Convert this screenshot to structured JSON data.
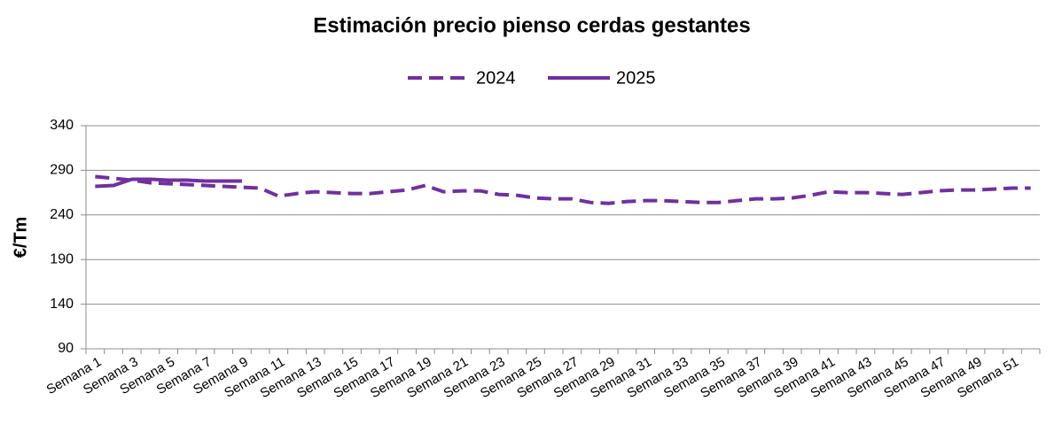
{
  "chart_data": {
    "type": "line",
    "title": "Estimación precio pienso cerdas gestantes",
    "y_label": "€/Tm",
    "categories": [
      "Semana 1",
      null,
      "Semana 3",
      null,
      "Semana 5",
      null,
      "Semana 7",
      null,
      "Semana 9",
      null,
      "Semana 11",
      null,
      "Semana 13",
      null,
      "Semana 15",
      null,
      "Semana 17",
      null,
      "Semana 19",
      null,
      "Semana 21",
      null,
      "Semana 23",
      null,
      "Semana 25",
      null,
      "Semana 27",
      null,
      "Semana 29",
      null,
      "Semana 31",
      null,
      "Semana 33",
      null,
      "Semana 35",
      null,
      "Semana 37",
      null,
      "Semana 39",
      null,
      "Semana 41",
      null,
      "Semana 43",
      null,
      "Semana 45",
      null,
      "Semana 47",
      null,
      "Semana 49",
      null,
      "Semana 51",
      null
    ],
    "series": [
      {
        "name": "2024",
        "color": "#7030a0",
        "dashed": true,
        "values": [
          283,
          281,
          279,
          276,
          275,
          274,
          273,
          272,
          271,
          270,
          261,
          264,
          266,
          265,
          264,
          264,
          266,
          268,
          273,
          266,
          267,
          267,
          263,
          262,
          259,
          258,
          258,
          254,
          253,
          255,
          256,
          256,
          255,
          254,
          254,
          256,
          258,
          258,
          259,
          262,
          266,
          265,
          265,
          264,
          263,
          265,
          267,
          268,
          268,
          269,
          270,
          270
        ]
      },
      {
        "name": "2025",
        "color": "#7030a0",
        "dashed": false,
        "values": [
          272,
          273,
          280,
          280,
          279,
          279,
          278,
          278,
          278,
          null,
          null,
          null,
          null,
          null,
          null,
          null,
          null,
          null,
          null,
          null,
          null,
          null,
          null,
          null,
          null,
          null,
          null,
          null,
          null,
          null,
          null,
          null,
          null,
          null,
          null,
          null,
          null,
          null,
          null,
          null,
          null,
          null,
          null,
          null,
          null,
          null,
          null,
          null,
          null,
          null,
          null,
          null
        ]
      }
    ],
    "ylim": [
      90,
      340
    ],
    "yticks": [
      90,
      140,
      190,
      240,
      290,
      340
    ],
    "grid": true,
    "legend": "top"
  }
}
